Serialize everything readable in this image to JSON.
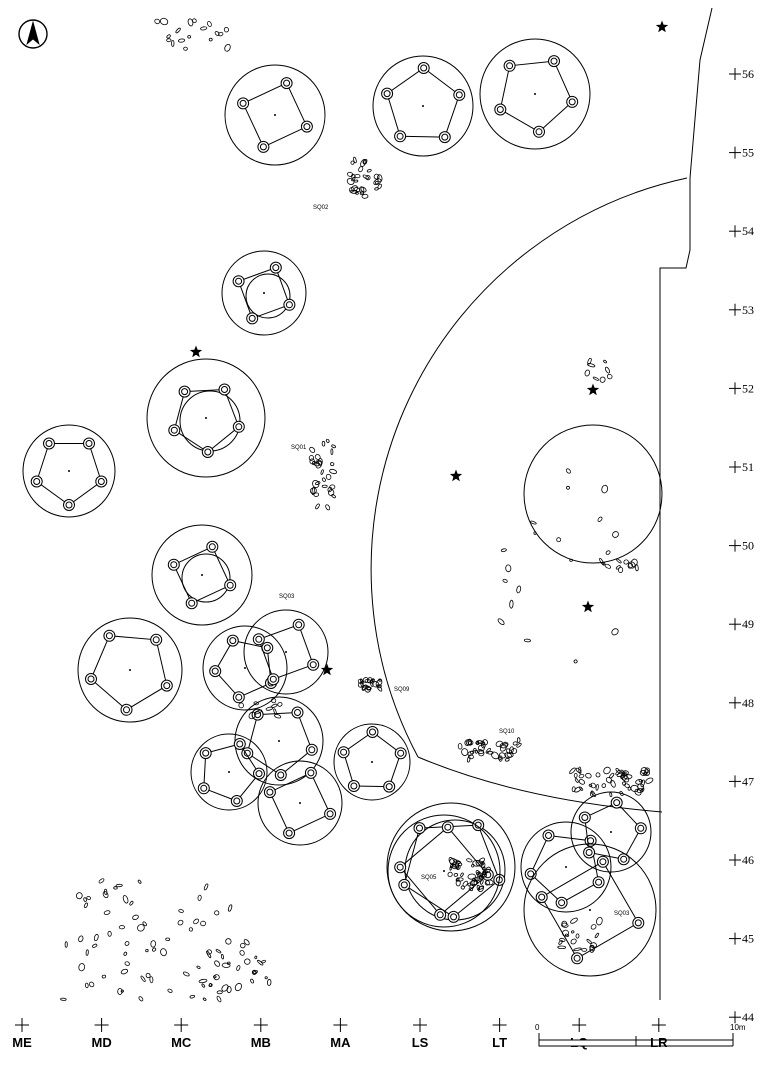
{
  "map": {
    "grid_rows": [
      "56",
      "55",
      "54",
      "53",
      "52",
      "51",
      "50",
      "49",
      "48",
      "47",
      "46",
      "45",
      "44"
    ],
    "grid_cols": [
      "ME",
      "MD",
      "MC",
      "MB",
      "MA",
      "LS",
      "LT",
      "LQ",
      "LR"
    ],
    "feature_labels": {
      "sq01": "SQ01",
      "sq02": "SQ02",
      "sq03a": "SQ03",
      "sq09": "SQ09",
      "sq10": "SQ10",
      "sq05": "SQ05",
      "sq03b": "SQ03"
    },
    "scale": {
      "start": "0",
      "end": "10m"
    },
    "north_icon": "north-arrow-icon",
    "marker_icon": "star-icon"
  }
}
